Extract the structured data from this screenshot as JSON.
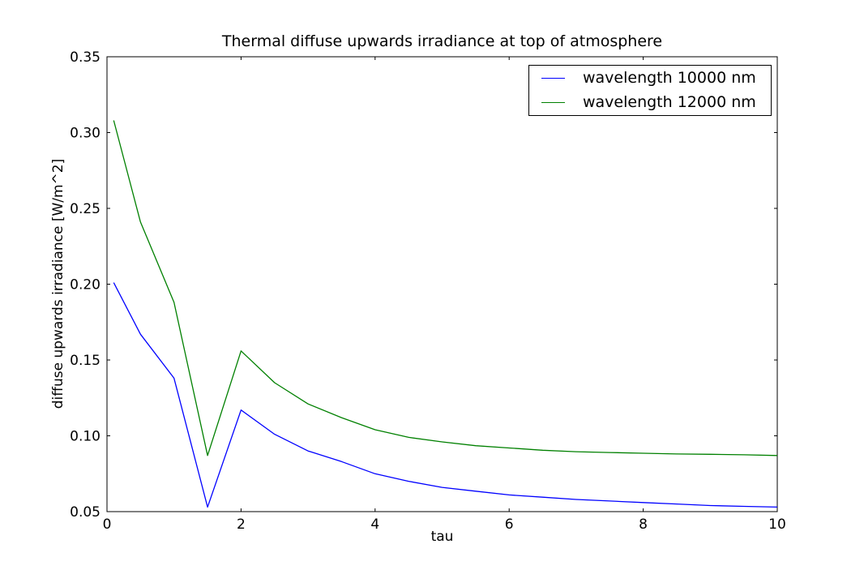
{
  "figure": {
    "background": "#ffffff",
    "frame_color": "#000000",
    "text_color": "#000000"
  },
  "chart_data": {
    "type": "line",
    "title": "Thermal diffuse upwards irradiance at top of atmosphere",
    "xlabel": "tau",
    "ylabel": "diffuse upwards irradiance [W/m^2]",
    "xlim": [
      0,
      10
    ],
    "ylim": [
      0.05,
      0.35
    ],
    "xticks": [
      0,
      2,
      4,
      6,
      8,
      10
    ],
    "xtick_labels": [
      "0",
      "2",
      "4",
      "6",
      "8",
      "10"
    ],
    "yticks": [
      0.05,
      0.1,
      0.15,
      0.2,
      0.25,
      0.3,
      0.35
    ],
    "ytick_labels": [
      "0.05",
      "0.10",
      "0.15",
      "0.20",
      "0.25",
      "0.30",
      "0.35"
    ],
    "grid": false,
    "legend_position": "upper right",
    "x": [
      0.1,
      0.5,
      1.0,
      1.5,
      2.0,
      2.5,
      3.0,
      3.5,
      4.0,
      4.5,
      5.0,
      5.5,
      6.0,
      6.5,
      7.0,
      7.5,
      8.0,
      8.5,
      9.0,
      9.5,
      10.0
    ],
    "series": [
      {
        "name": "wavelength 10000 nm",
        "color": "#0000ff",
        "values": [
          0.201,
          0.167,
          0.138,
          0.053,
          0.117,
          0.101,
          0.09,
          0.083,
          0.075,
          0.07,
          0.066,
          0.0635,
          0.061,
          0.0595,
          0.058,
          0.057,
          0.056,
          0.055,
          0.054,
          0.0535,
          0.053
        ]
      },
      {
        "name": "wavelength 12000 nm",
        "color": "#008000",
        "values": [
          0.308,
          0.241,
          0.188,
          0.087,
          0.156,
          0.135,
          0.121,
          0.112,
          0.104,
          0.099,
          0.096,
          0.0935,
          0.092,
          0.0905,
          0.0895,
          0.089,
          0.0885,
          0.088,
          0.0878,
          0.0875,
          0.087
        ]
      }
    ]
  }
}
